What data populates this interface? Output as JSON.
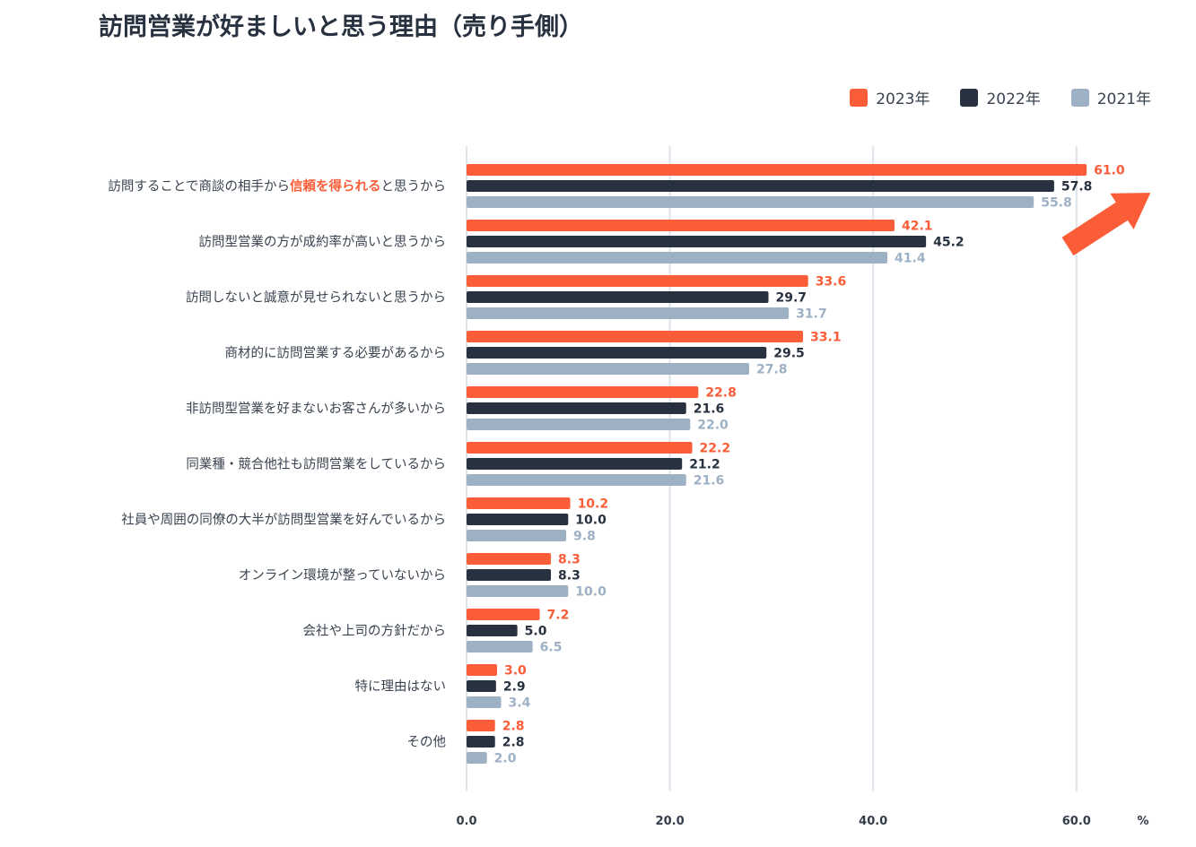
{
  "title": "訪問営業が好ましいと思う理由（売り手側）",
  "colors": {
    "2023": "#fa5d37",
    "2022": "#27313f",
    "2021": "#9eb0c4",
    "grid": "#dde3ea",
    "arrow": "#fa5d37"
  },
  "chart_data": {
    "type": "bar",
    "orientation": "horizontal",
    "title": "訪問営業が好ましいと思う理由（売り手側）",
    "xlabel": "%",
    "xlim": [
      0,
      60
    ],
    "ticks": [
      "0.0",
      "20.0",
      "40.0",
      "60.0"
    ],
    "unit": "%",
    "categories": [
      "訪問することで商談の相手から信頼を得られると思うから",
      "訪問型営業の方が成約率が高いと思うから",
      "訪問しないと誠意が見せられないと思うから",
      "商材的に訪問営業する必要があるから",
      "非訪問型営業を好まないお客さんが多いから",
      "同業種・競合他社も訪問営業をしているから",
      "社員や周囲の同僚の大半が訪問型営業を好んでいるから",
      "オンライン環境が整っていないから",
      "会社や上司の方針だから",
      "特に理由はない",
      "その他"
    ],
    "first_label_parts": [
      "訪問することで商談の相手から",
      "信頼を得られる",
      "と思うから"
    ],
    "series": [
      {
        "name": "2023年",
        "key": "2023",
        "values": [
          61.0,
          42.1,
          33.6,
          33.1,
          22.8,
          22.2,
          10.2,
          8.3,
          7.2,
          3.0,
          2.8
        ]
      },
      {
        "name": "2022年",
        "key": "2022",
        "values": [
          57.8,
          45.2,
          29.7,
          29.5,
          21.6,
          21.2,
          10.0,
          8.3,
          5.0,
          2.9,
          2.8
        ]
      },
      {
        "name": "2021年",
        "key": "2021",
        "values": [
          55.8,
          41.4,
          31.7,
          27.8,
          22.0,
          21.6,
          9.8,
          10.0,
          6.5,
          3.4,
          2.0
        ]
      }
    ],
    "legend_position": "top-right",
    "annotation": "upward-arrow"
  }
}
